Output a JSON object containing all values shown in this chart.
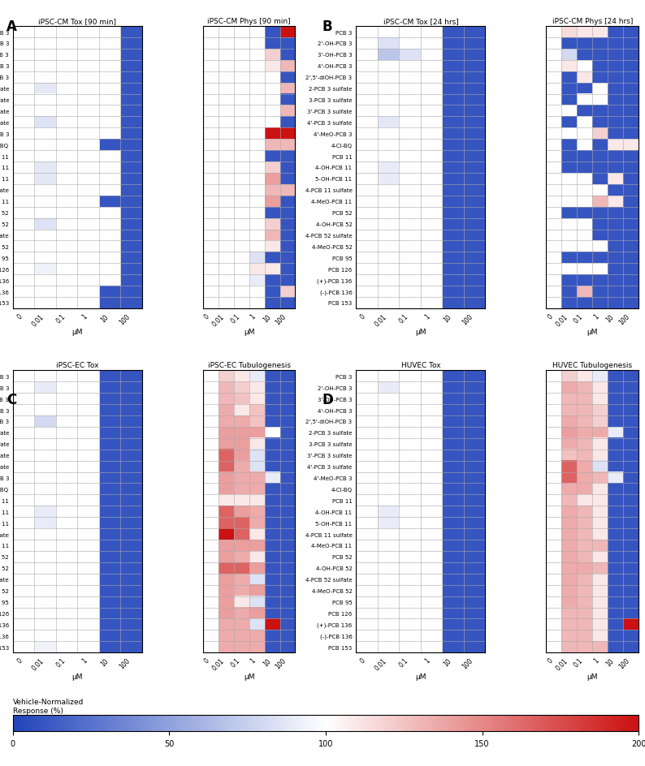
{
  "compounds": [
    "PCB 3",
    "2'-OH-PCB 3",
    "3'-OH-PCB 3",
    "4'-OH-PCB 3",
    "2',5'-diOH-PCB 3",
    "2-PCB 3 sulfate",
    "3-PCB 3 sulfate",
    "3'-PCB 3 sulfate",
    "4'-PCB 3 sulfate",
    "4'-MeO-PCB 3",
    "4-Cl-BQ",
    "PCB 11",
    "4-OH-PCB 11",
    "5-OH-PCB 11",
    "4-PCB 11 sulfate",
    "4-MeO-PCB 11",
    "PCB 52",
    "4-OH-PCB 52",
    "4-PCB 52 sulfate",
    "4-MeO-PCB 52",
    "PCB 95",
    "PCB 126",
    "(+)-PCB 136",
    "(-)-PCB 136",
    "PCB 153"
  ],
  "concentrations": [
    "0",
    "0.01",
    "0.1",
    "1",
    "10",
    "100"
  ],
  "xlabel": "μM",
  "colorbar_label": "Vehicle-Normalized\nResponse (%)",
  "colorbar_ticks": [
    0,
    50,
    100,
    150,
    200
  ],
  "vmin": 0,
  "vmax": 200,
  "vcenter": 100,
  "panel_A_tox": [
    [
      100,
      100,
      100,
      100,
      100,
      10
    ],
    [
      100,
      100,
      100,
      100,
      100,
      10
    ],
    [
      100,
      100,
      100,
      100,
      100,
      10
    ],
    [
      100,
      100,
      100,
      100,
      100,
      10
    ],
    [
      100,
      100,
      100,
      100,
      100,
      10
    ],
    [
      100,
      88,
      100,
      100,
      100,
      10
    ],
    [
      100,
      100,
      100,
      100,
      100,
      10
    ],
    [
      100,
      100,
      100,
      100,
      100,
      10
    ],
    [
      100,
      85,
      100,
      100,
      100,
      10
    ],
    [
      100,
      100,
      100,
      100,
      100,
      10
    ],
    [
      100,
      100,
      100,
      100,
      10,
      10
    ],
    [
      100,
      100,
      100,
      100,
      100,
      10
    ],
    [
      100,
      88,
      100,
      100,
      100,
      10
    ],
    [
      100,
      88,
      100,
      100,
      100,
      10
    ],
    [
      100,
      100,
      100,
      100,
      100,
      10
    ],
    [
      100,
      100,
      100,
      100,
      10,
      10
    ],
    [
      100,
      100,
      100,
      100,
      100,
      10
    ],
    [
      100,
      85,
      100,
      100,
      100,
      10
    ],
    [
      100,
      100,
      100,
      100,
      100,
      10
    ],
    [
      100,
      100,
      100,
      100,
      100,
      10
    ],
    [
      100,
      100,
      100,
      100,
      100,
      10
    ],
    [
      100,
      93,
      100,
      100,
      100,
      10
    ],
    [
      100,
      100,
      100,
      100,
      100,
      10
    ],
    [
      100,
      100,
      100,
      100,
      10,
      10
    ],
    [
      100,
      100,
      100,
      100,
      10,
      10
    ]
  ],
  "panel_A_phys": [
    [
      100,
      100,
      100,
      100,
      10,
      200
    ],
    [
      100,
      100,
      100,
      100,
      10,
      10
    ],
    [
      100,
      100,
      100,
      100,
      120,
      10
    ],
    [
      100,
      100,
      100,
      100,
      110,
      130
    ],
    [
      100,
      100,
      100,
      100,
      100,
      10
    ],
    [
      100,
      100,
      100,
      100,
      100,
      130
    ],
    [
      100,
      100,
      100,
      100,
      100,
      10
    ],
    [
      100,
      100,
      100,
      100,
      100,
      130
    ],
    [
      100,
      100,
      100,
      100,
      100,
      10
    ],
    [
      100,
      100,
      100,
      100,
      200,
      200
    ],
    [
      100,
      100,
      100,
      100,
      130,
      130
    ],
    [
      100,
      100,
      100,
      100,
      10,
      10
    ],
    [
      100,
      100,
      100,
      100,
      120,
      10
    ],
    [
      100,
      100,
      100,
      100,
      140,
      10
    ],
    [
      100,
      100,
      100,
      100,
      130,
      130
    ],
    [
      100,
      100,
      100,
      100,
      140,
      10
    ],
    [
      100,
      100,
      100,
      100,
      10,
      10
    ],
    [
      100,
      100,
      100,
      100,
      120,
      10
    ],
    [
      100,
      100,
      100,
      100,
      130,
      10
    ],
    [
      100,
      100,
      100,
      100,
      110,
      10
    ],
    [
      100,
      100,
      100,
      85,
      10,
      10
    ],
    [
      100,
      100,
      100,
      110,
      110,
      10
    ],
    [
      100,
      100,
      100,
      90,
      10,
      10
    ],
    [
      100,
      100,
      100,
      100,
      10,
      120
    ],
    [
      100,
      100,
      100,
      100,
      10,
      10
    ]
  ],
  "panel_B_tox": [
    [
      100,
      100,
      100,
      100,
      10,
      10
    ],
    [
      100,
      85,
      100,
      100,
      10,
      10
    ],
    [
      100,
      70,
      85,
      100,
      10,
      10
    ],
    [
      100,
      100,
      100,
      100,
      10,
      10
    ],
    [
      100,
      100,
      100,
      100,
      10,
      10
    ],
    [
      100,
      100,
      100,
      100,
      10,
      10
    ],
    [
      100,
      100,
      100,
      100,
      10,
      10
    ],
    [
      100,
      100,
      100,
      100,
      10,
      10
    ],
    [
      100,
      88,
      100,
      100,
      10,
      10
    ],
    [
      100,
      100,
      100,
      100,
      10,
      10
    ],
    [
      100,
      100,
      100,
      100,
      10,
      10
    ],
    [
      100,
      100,
      100,
      100,
      10,
      10
    ],
    [
      100,
      90,
      100,
      100,
      10,
      10
    ],
    [
      100,
      90,
      100,
      100,
      10,
      10
    ],
    [
      100,
      100,
      100,
      100,
      10,
      10
    ],
    [
      100,
      100,
      100,
      100,
      10,
      10
    ],
    [
      100,
      100,
      100,
      100,
      10,
      10
    ],
    [
      100,
      100,
      100,
      100,
      10,
      10
    ],
    [
      100,
      100,
      100,
      100,
      10,
      10
    ],
    [
      100,
      100,
      100,
      100,
      10,
      10
    ],
    [
      100,
      100,
      100,
      100,
      10,
      10
    ],
    [
      100,
      100,
      100,
      100,
      10,
      10
    ],
    [
      100,
      100,
      100,
      100,
      10,
      10
    ],
    [
      100,
      100,
      100,
      100,
      10,
      10
    ],
    [
      100,
      100,
      100,
      100,
      10,
      10
    ]
  ],
  "panel_B_phys": [
    [
      100,
      115,
      110,
      110,
      10,
      10
    ],
    [
      100,
      10,
      10,
      10,
      10,
      10
    ],
    [
      100,
      80,
      10,
      10,
      10,
      10
    ],
    [
      100,
      110,
      100,
      10,
      10,
      10
    ],
    [
      100,
      10,
      110,
      10,
      10,
      10
    ],
    [
      100,
      10,
      10,
      100,
      10,
      10
    ],
    [
      100,
      10,
      100,
      100,
      10,
      10
    ],
    [
      100,
      100,
      10,
      10,
      10,
      10
    ],
    [
      100,
      10,
      100,
      10,
      10,
      10
    ],
    [
      100,
      100,
      100,
      120,
      10,
      10
    ],
    [
      100,
      10,
      100,
      10,
      110,
      110
    ],
    [
      100,
      10,
      10,
      10,
      10,
      10
    ],
    [
      100,
      10,
      10,
      10,
      10,
      10
    ],
    [
      100,
      100,
      100,
      10,
      110,
      10
    ],
    [
      100,
      100,
      100,
      100,
      10,
      10
    ],
    [
      100,
      100,
      100,
      130,
      110,
      10
    ],
    [
      100,
      10,
      10,
      10,
      10,
      10
    ],
    [
      100,
      100,
      100,
      10,
      10,
      10
    ],
    [
      100,
      100,
      100,
      10,
      10,
      10
    ],
    [
      100,
      100,
      100,
      100,
      10,
      10
    ],
    [
      100,
      10,
      10,
      10,
      10,
      10
    ],
    [
      100,
      100,
      100,
      100,
      10,
      10
    ],
    [
      100,
      10,
      10,
      10,
      10,
      10
    ],
    [
      100,
      10,
      130,
      10,
      10,
      10
    ],
    [
      100,
      10,
      10,
      10,
      10,
      10
    ]
  ],
  "panel_C_tox": [
    [
      100,
      100,
      100,
      100,
      10,
      10
    ],
    [
      100,
      90,
      100,
      100,
      10,
      10
    ],
    [
      100,
      100,
      100,
      100,
      10,
      10
    ],
    [
      100,
      100,
      100,
      100,
      10,
      10
    ],
    [
      100,
      80,
      100,
      100,
      10,
      10
    ],
    [
      100,
      100,
      100,
      100,
      10,
      10
    ],
    [
      100,
      100,
      100,
      100,
      10,
      10
    ],
    [
      100,
      100,
      100,
      100,
      10,
      10
    ],
    [
      100,
      100,
      100,
      100,
      10,
      10
    ],
    [
      100,
      100,
      100,
      100,
      10,
      10
    ],
    [
      100,
      100,
      100,
      100,
      10,
      10
    ],
    [
      100,
      100,
      100,
      100,
      10,
      10
    ],
    [
      100,
      90,
      100,
      100,
      10,
      10
    ],
    [
      100,
      90,
      100,
      100,
      10,
      10
    ],
    [
      100,
      100,
      100,
      100,
      10,
      10
    ],
    [
      100,
      100,
      100,
      100,
      10,
      10
    ],
    [
      100,
      100,
      100,
      100,
      10,
      10
    ],
    [
      100,
      100,
      100,
      100,
      10,
      10
    ],
    [
      100,
      100,
      100,
      100,
      10,
      10
    ],
    [
      100,
      100,
      100,
      100,
      10,
      10
    ],
    [
      100,
      100,
      100,
      100,
      10,
      10
    ],
    [
      100,
      100,
      100,
      100,
      10,
      10
    ],
    [
      100,
      100,
      100,
      100,
      10,
      10
    ],
    [
      100,
      100,
      100,
      100,
      10,
      10
    ],
    [
      100,
      93,
      100,
      100,
      10,
      10
    ]
  ],
  "panel_C_tubu": [
    [
      100,
      120,
      110,
      90,
      10,
      10
    ],
    [
      100,
      130,
      120,
      110,
      10,
      10
    ],
    [
      100,
      130,
      125,
      110,
      10,
      10
    ],
    [
      100,
      135,
      110,
      125,
      10,
      10
    ],
    [
      100,
      135,
      135,
      125,
      10,
      10
    ],
    [
      100,
      140,
      140,
      140,
      100,
      10
    ],
    [
      100,
      140,
      140,
      110,
      10,
      10
    ],
    [
      100,
      165,
      140,
      85,
      10,
      10
    ],
    [
      100,
      165,
      135,
      85,
      10,
      10
    ],
    [
      100,
      140,
      135,
      135,
      90,
      10
    ],
    [
      100,
      140,
      135,
      135,
      10,
      10
    ],
    [
      100,
      110,
      110,
      110,
      10,
      10
    ],
    [
      100,
      165,
      140,
      135,
      10,
      10
    ],
    [
      100,
      165,
      165,
      135,
      10,
      10
    ],
    [
      100,
      200,
      165,
      110,
      10,
      10
    ],
    [
      100,
      140,
      140,
      140,
      10,
      10
    ],
    [
      100,
      140,
      135,
      110,
      10,
      10
    ],
    [
      100,
      165,
      165,
      140,
      10,
      10
    ],
    [
      100,
      140,
      135,
      85,
      10,
      10
    ],
    [
      100,
      140,
      135,
      140,
      10,
      10
    ],
    [
      100,
      140,
      110,
      85,
      10,
      10
    ],
    [
      100,
      140,
      135,
      140,
      10,
      10
    ],
    [
      100,
      135,
      135,
      85,
      200,
      10
    ],
    [
      100,
      135,
      135,
      135,
      10,
      10
    ],
    [
      100,
      135,
      135,
      135,
      10,
      10
    ]
  ],
  "panel_D_tox": [
    [
      100,
      100,
      100,
      100,
      10,
      10
    ],
    [
      100,
      90,
      100,
      100,
      10,
      10
    ],
    [
      100,
      100,
      100,
      100,
      10,
      10
    ],
    [
      100,
      100,
      100,
      100,
      10,
      10
    ],
    [
      100,
      100,
      100,
      100,
      10,
      10
    ],
    [
      100,
      100,
      100,
      100,
      10,
      10
    ],
    [
      100,
      100,
      100,
      100,
      10,
      10
    ],
    [
      100,
      100,
      100,
      100,
      10,
      10
    ],
    [
      100,
      100,
      100,
      100,
      10,
      10
    ],
    [
      100,
      100,
      100,
      100,
      10,
      10
    ],
    [
      100,
      100,
      100,
      100,
      10,
      10
    ],
    [
      100,
      100,
      100,
      100,
      10,
      10
    ],
    [
      100,
      90,
      100,
      100,
      10,
      10
    ],
    [
      100,
      90,
      100,
      100,
      10,
      10
    ],
    [
      100,
      100,
      100,
      100,
      10,
      10
    ],
    [
      100,
      100,
      100,
      100,
      10,
      10
    ],
    [
      100,
      100,
      100,
      100,
      10,
      10
    ],
    [
      100,
      100,
      100,
      100,
      10,
      10
    ],
    [
      100,
      100,
      100,
      100,
      10,
      10
    ],
    [
      100,
      100,
      100,
      100,
      10,
      10
    ],
    [
      100,
      100,
      100,
      100,
      10,
      10
    ],
    [
      100,
      100,
      100,
      100,
      10,
      10
    ],
    [
      100,
      100,
      100,
      100,
      10,
      10
    ],
    [
      100,
      100,
      100,
      100,
      10,
      10
    ],
    [
      100,
      100,
      100,
      100,
      10,
      10
    ]
  ],
  "panel_D_tubu": [
    [
      100,
      120,
      110,
      90,
      10,
      10
    ],
    [
      100,
      135,
      130,
      110,
      10,
      10
    ],
    [
      100,
      130,
      130,
      110,
      10,
      10
    ],
    [
      100,
      130,
      130,
      120,
      10,
      10
    ],
    [
      100,
      135,
      130,
      120,
      10,
      10
    ],
    [
      100,
      140,
      135,
      135,
      90,
      10
    ],
    [
      100,
      135,
      130,
      110,
      10,
      10
    ],
    [
      100,
      125,
      130,
      110,
      10,
      10
    ],
    [
      100,
      165,
      135,
      85,
      10,
      10
    ],
    [
      100,
      165,
      135,
      130,
      90,
      10
    ],
    [
      100,
      135,
      135,
      110,
      10,
      10
    ],
    [
      100,
      130,
      110,
      110,
      10,
      10
    ],
    [
      100,
      135,
      130,
      110,
      10,
      10
    ],
    [
      100,
      135,
      130,
      110,
      10,
      10
    ],
    [
      100,
      135,
      130,
      110,
      10,
      10
    ],
    [
      100,
      135,
      130,
      130,
      10,
      10
    ],
    [
      100,
      135,
      130,
      110,
      10,
      10
    ],
    [
      100,
      135,
      135,
      130,
      10,
      10
    ],
    [
      100,
      135,
      130,
      110,
      10,
      10
    ],
    [
      100,
      135,
      130,
      110,
      10,
      10
    ],
    [
      100,
      135,
      130,
      110,
      10,
      10
    ],
    [
      100,
      130,
      130,
      110,
      10,
      10
    ],
    [
      100,
      130,
      130,
      110,
      10,
      200
    ],
    [
      100,
      130,
      130,
      110,
      10,
      10
    ],
    [
      100,
      130,
      130,
      130,
      10,
      10
    ]
  ]
}
